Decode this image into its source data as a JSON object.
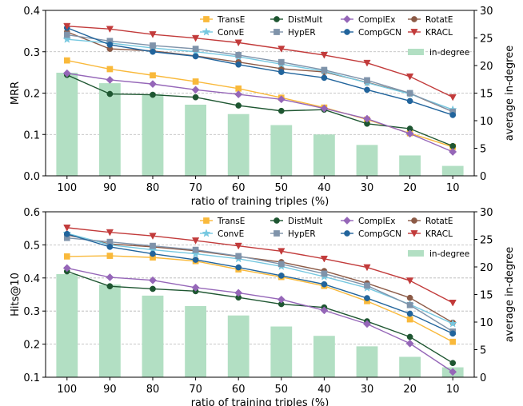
{
  "chart_data": [
    {
      "type": "line",
      "categories": [
        "100",
        "90",
        "80",
        "70",
        "60",
        "50",
        "40",
        "30",
        "20",
        "10"
      ],
      "xlabel": "ratio of training triples (%)",
      "ylabel": "MRR",
      "y2label": "average in-degree",
      "ylim": [
        0.0,
        0.4
      ],
      "yticks": [
        "0.0",
        "0.1",
        "0.2",
        "0.3",
        "0.4"
      ],
      "y2lim": [
        0,
        30
      ],
      "y2ticks": [
        "0",
        "5",
        "10",
        "15",
        "20",
        "25",
        "30"
      ],
      "grid": "horizontal dashed",
      "legend_position": "top-right",
      "bars": {
        "name": "in-degree",
        "color": "#b2dfc3",
        "values": [
          18.7,
          16.8,
          14.8,
          12.9,
          11.2,
          9.2,
          7.5,
          5.6,
          3.7,
          1.8
        ]
      },
      "series": [
        {
          "name": "TransE",
          "color": "#f9b93b",
          "marker": "square",
          "values": [
            0.279,
            0.258,
            0.243,
            0.228,
            0.211,
            0.189,
            0.165,
            0.136,
            0.103,
            0.07
          ]
        },
        {
          "name": "DistMult",
          "color": "#1e5631",
          "marker": "circle",
          "values": [
            0.244,
            0.198,
            0.196,
            0.19,
            0.17,
            0.157,
            0.16,
            0.126,
            0.114,
            0.072
          ]
        },
        {
          "name": "ComplEx",
          "color": "#9566b8",
          "marker": "diamond",
          "values": [
            0.248,
            0.232,
            0.222,
            0.208,
            0.197,
            0.185,
            0.163,
            0.138,
            0.102,
            0.058
          ]
        },
        {
          "name": "RotatE",
          "color": "#8c5a46",
          "marker": "circle",
          "values": [
            0.348,
            0.307,
            0.302,
            0.29,
            0.275,
            0.259,
            0.251,
            0.226,
            0.199,
            0.155
          ]
        },
        {
          "name": "ConvE",
          "color": "#76c8e0",
          "marker": "star",
          "values": [
            0.33,
            0.321,
            0.309,
            0.3,
            0.288,
            0.27,
            0.253,
            0.225,
            0.198,
            0.16
          ]
        },
        {
          "name": "HypER",
          "color": "#7f93aa",
          "marker": "square",
          "values": [
            0.341,
            0.326,
            0.315,
            0.307,
            0.292,
            0.275,
            0.256,
            0.231,
            0.2,
            0.155
          ]
        },
        {
          "name": "CompGCN",
          "color": "#21649c",
          "marker": "circle",
          "values": [
            0.358,
            0.317,
            0.3,
            0.289,
            0.269,
            0.251,
            0.237,
            0.208,
            0.181,
            0.147
          ]
        },
        {
          "name": "KRACL",
          "color": "#c23b3b",
          "marker": "triangle",
          "values": [
            0.362,
            0.355,
            0.342,
            0.333,
            0.322,
            0.307,
            0.292,
            0.273,
            0.24,
            0.19
          ]
        }
      ]
    },
    {
      "type": "line",
      "categories": [
        "100",
        "90",
        "80",
        "70",
        "60",
        "50",
        "40",
        "30",
        "20",
        "10"
      ],
      "xlabel": "ratio of training triples (%)",
      "ylabel": "Hits@10",
      "y2label": "average in-degree",
      "ylim": [
        0.1,
        0.6
      ],
      "yticks": [
        "0.1",
        "0.2",
        "0.3",
        "0.4",
        "0.5",
        "0.6"
      ],
      "y2lim": [
        0,
        30
      ],
      "y2ticks": [
        "0",
        "5",
        "10",
        "15",
        "20",
        "25",
        "30"
      ],
      "grid": "horizontal dashed",
      "legend_position": "top-right",
      "bars": {
        "name": "in-degree",
        "color": "#b2dfc3",
        "values": [
          18.7,
          16.8,
          14.8,
          12.9,
          11.2,
          9.2,
          7.5,
          5.6,
          3.7,
          1.8
        ]
      },
      "series": [
        {
          "name": "TransE",
          "color": "#f9b93b",
          "marker": "square",
          "values": [
            0.465,
            0.467,
            0.462,
            0.451,
            0.426,
            0.403,
            0.376,
            0.33,
            0.275,
            0.207
          ]
        },
        {
          "name": "DistMult",
          "color": "#1e5631",
          "marker": "circle",
          "values": [
            0.42,
            0.375,
            0.367,
            0.36,
            0.341,
            0.321,
            0.311,
            0.269,
            0.222,
            0.143
          ]
        },
        {
          "name": "ComplEx",
          "color": "#9566b8",
          "marker": "diamond",
          "values": [
            0.43,
            0.402,
            0.393,
            0.371,
            0.355,
            0.335,
            0.302,
            0.261,
            0.202,
            0.116
          ]
        },
        {
          "name": "RotatE",
          "color": "#8c5a46",
          "marker": "circle",
          "values": [
            0.53,
            0.503,
            0.494,
            0.482,
            0.465,
            0.448,
            0.421,
            0.384,
            0.34,
            0.265
          ]
        },
        {
          "name": "ConvE",
          "color": "#76c8e0",
          "marker": "star",
          "values": [
            0.535,
            0.5,
            0.485,
            0.473,
            0.458,
            0.435,
            0.404,
            0.37,
            0.32,
            0.262
          ]
        },
        {
          "name": "HypER",
          "color": "#7f93aa",
          "marker": "square",
          "values": [
            0.521,
            0.509,
            0.497,
            0.485,
            0.466,
            0.442,
            0.413,
            0.377,
            0.318,
            0.238
          ]
        },
        {
          "name": "CompGCN",
          "color": "#21649c",
          "marker": "circle",
          "values": [
            0.533,
            0.494,
            0.473,
            0.455,
            0.432,
            0.407,
            0.381,
            0.339,
            0.292,
            0.232
          ]
        },
        {
          "name": "KRACL",
          "color": "#c23b3b",
          "marker": "triangle",
          "values": [
            0.552,
            0.538,
            0.527,
            0.513,
            0.497,
            0.481,
            0.458,
            0.432,
            0.392,
            0.325
          ]
        }
      ]
    }
  ]
}
